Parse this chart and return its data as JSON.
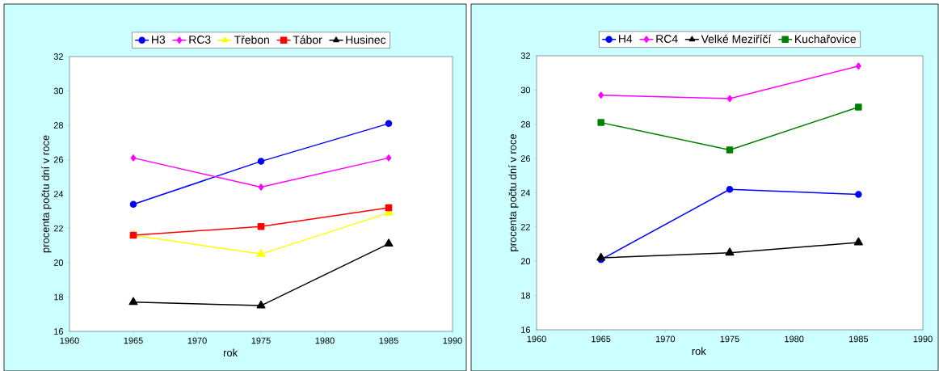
{
  "chart_data": [
    {
      "type": "line",
      "xlabel": "rok",
      "ylabel": "procenta počtu dní v roce",
      "x": [
        1965,
        1975,
        1985
      ],
      "xlim": [
        1960,
        1990
      ],
      "xticks": [
        1960,
        1965,
        1970,
        1975,
        1980,
        1985,
        1990
      ],
      "ylim": [
        16,
        32
      ],
      "yticks": [
        16,
        18,
        20,
        22,
        24,
        26,
        28,
        30,
        32
      ],
      "legend": "top",
      "series": [
        {
          "name": "H3",
          "color": "#0000ff",
          "marker": "circle",
          "values": [
            23.4,
            25.9,
            28.1
          ]
        },
        {
          "name": "RC3",
          "color": "#ff00ff",
          "marker": "diamond",
          "values": [
            26.1,
            24.4,
            26.1
          ]
        },
        {
          "name": "Třebon",
          "color": "#ffff00",
          "marker": "triangle",
          "values": [
            21.6,
            20.5,
            22.9
          ]
        },
        {
          "name": "Tábor",
          "color": "#ff0000",
          "marker": "square",
          "values": [
            21.6,
            22.1,
            23.2
          ]
        },
        {
          "name": "Husinec",
          "color": "#000000",
          "marker": "triangle",
          "values": [
            17.7,
            17.5,
            21.1
          ]
        }
      ]
    },
    {
      "type": "line",
      "xlabel": "rok",
      "ylabel": "procenta počtu dní v roce",
      "x": [
        1965,
        1975,
        1985
      ],
      "xlim": [
        1960,
        1990
      ],
      "xticks": [
        1960,
        1965,
        1970,
        1975,
        1980,
        1985,
        1990
      ],
      "ylim": [
        16,
        32
      ],
      "yticks": [
        16,
        18,
        20,
        22,
        24,
        26,
        28,
        30,
        32
      ],
      "legend": "top",
      "series": [
        {
          "name": "H4",
          "color": "#0000ff",
          "marker": "circle",
          "values": [
            20.1,
            24.2,
            23.9
          ]
        },
        {
          "name": "RC4",
          "color": "#ff00ff",
          "marker": "diamond",
          "values": [
            29.7,
            29.5,
            31.4
          ]
        },
        {
          "name": "Velké Meziříčí",
          "color": "#000000",
          "marker": "triangle",
          "values": [
            20.2,
            20.5,
            21.1
          ]
        },
        {
          "name": "Kuchařovice",
          "color": "#008000",
          "marker": "square",
          "values": [
            28.1,
            26.5,
            29.0
          ]
        }
      ]
    }
  ]
}
